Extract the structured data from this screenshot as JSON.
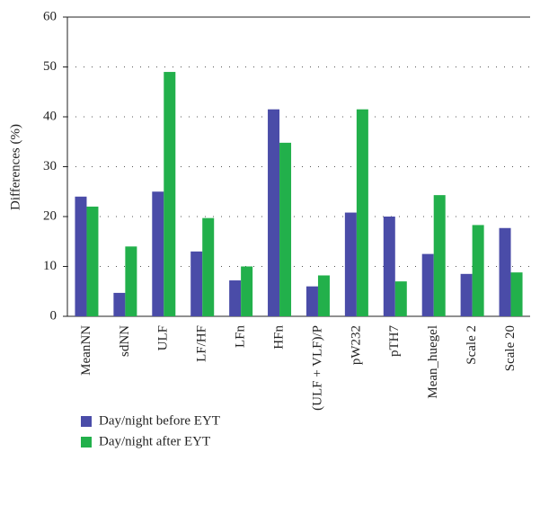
{
  "chart_data": {
    "type": "bar",
    "y_label": "Differences (%)",
    "categories": [
      "MeanNN",
      "sdNN",
      "ULF",
      "LF/HF",
      "LFn",
      "HFn",
      "(ULF + VLF)/P",
      "pW232",
      "pTH7",
      "Mean_huegel",
      "Scale 2",
      "Scale 20"
    ],
    "series": [
      {
        "name": "Day/night before EYT",
        "color": "#4a4ca8",
        "values": [
          24,
          4.7,
          25,
          13,
          7.2,
          41.5,
          6,
          20.8,
          20,
          12.5,
          8.5,
          17.7
        ]
      },
      {
        "name": "Day/night after EYT",
        "color": "#22b04b",
        "values": [
          22,
          14,
          49,
          19.7,
          10,
          34.8,
          8.2,
          41.5,
          7,
          24.3,
          18.3,
          8.8
        ]
      }
    ],
    "ylim": [
      0,
      60
    ],
    "yticks": [
      0,
      10,
      20,
      30,
      40,
      50,
      60
    ],
    "grid": true,
    "legend": "bottom"
  }
}
